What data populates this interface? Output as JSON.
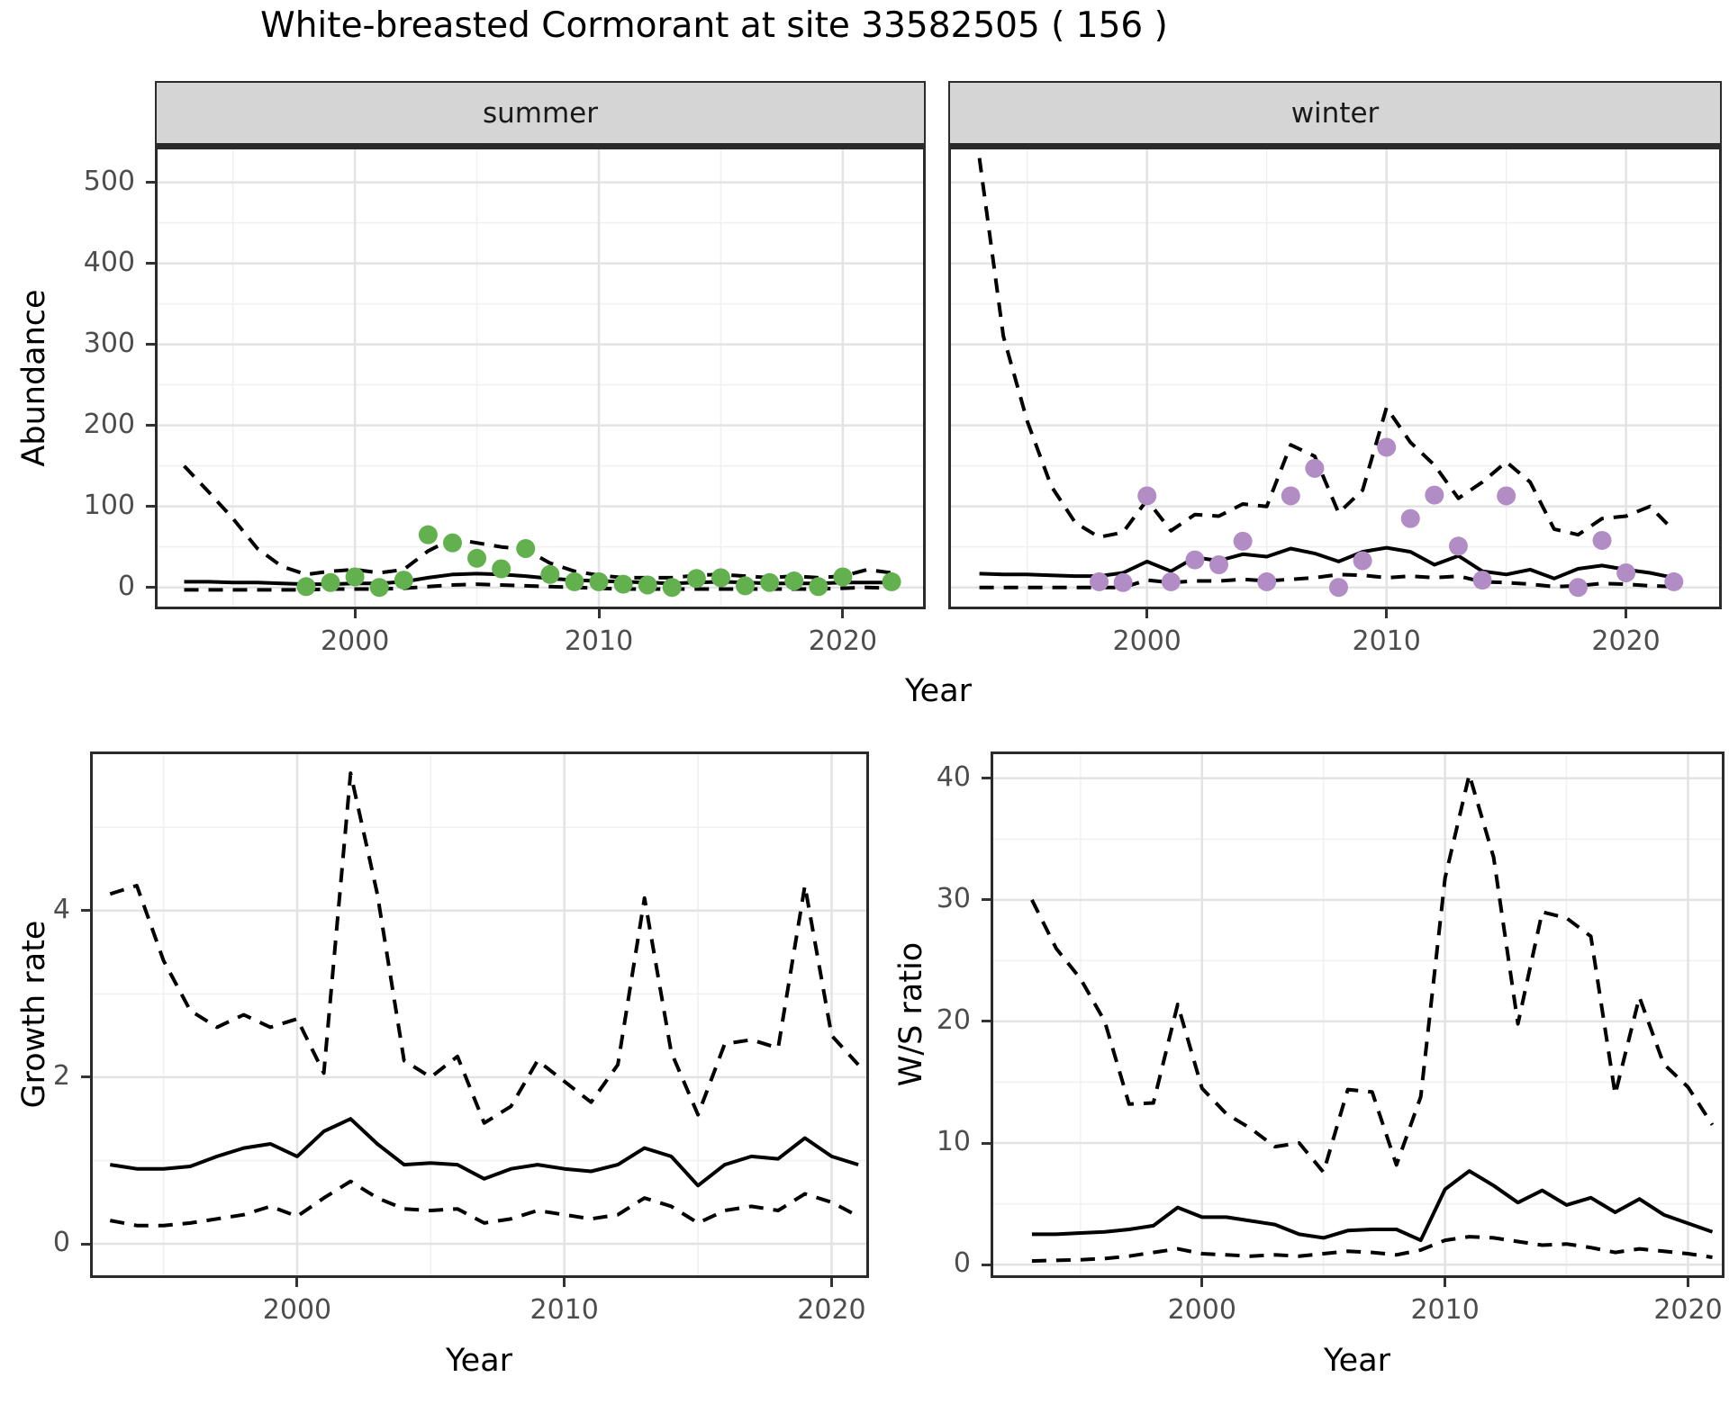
{
  "title": "White-breasted Cormorant at site 33582505 ( 156 )",
  "top_row": {
    "facets": [
      "summer",
      "winter"
    ],
    "ylabel": "Abundance",
    "xlabel": "Year"
  },
  "bottom_left": {
    "ylabel": "Growth rate",
    "xlabel": "Year"
  },
  "bottom_right": {
    "ylabel": "W/S ratio",
    "xlabel": "Year"
  },
  "colors": {
    "summer_points": "#62b14e",
    "winter_points": "#b18cc5",
    "line": "#000000",
    "strip_bg": "#d5d5d5",
    "grid_major": "#e3e3e3",
    "grid_minor": "#f0f0f0",
    "panel_border": "#2b2b2b",
    "tick_text": "#4d4d4d"
  },
  "chart_data": [
    {
      "type": "line",
      "panel": "summer",
      "title": "summer",
      "xlabel": "Year",
      "ylabel": "Abundance",
      "xlim": [
        1991.8,
        2023.4
      ],
      "ylim": [
        -27,
        544
      ],
      "x_ticks": [
        2000,
        2010,
        2020
      ],
      "x_minor": [
        1995,
        2005,
        2015
      ],
      "y_ticks": [
        0,
        100,
        200,
        300,
        400,
        500
      ],
      "y_minor": [
        50,
        150,
        250,
        350,
        450
      ],
      "legend": "none",
      "series": [
        {
          "name": "estimate",
          "style": "solid",
          "x": [
            1993,
            1994,
            1995,
            1996,
            1997,
            1998,
            1999,
            2000,
            2001,
            2002,
            2003,
            2004,
            2005,
            2006,
            2007,
            2008,
            2009,
            2010,
            2011,
            2012,
            2013,
            2014,
            2015,
            2016,
            2017,
            2018,
            2019,
            2020,
            2021,
            2022
          ],
          "y": [
            7,
            7,
            6,
            6,
            5,
            4,
            4,
            5,
            5,
            7,
            12,
            16,
            17,
            16,
            14,
            11,
            9,
            8,
            7,
            6,
            5,
            6,
            7,
            6,
            5,
            5,
            5,
            6,
            6,
            6
          ]
        },
        {
          "name": "upper_ci",
          "style": "dashed",
          "x": [
            1993,
            1994,
            1995,
            1996,
            1997,
            1998,
            1999,
            2000,
            2001,
            2002,
            2003,
            2004,
            2005,
            2006,
            2007,
            2008,
            2009,
            2010,
            2011,
            2012,
            2013,
            2014,
            2015,
            2016,
            2017,
            2018,
            2019,
            2020,
            2021,
            2022
          ],
          "y": [
            150,
            118,
            85,
            48,
            26,
            16,
            20,
            22,
            18,
            22,
            45,
            60,
            55,
            50,
            47,
            30,
            20,
            15,
            12,
            12,
            12,
            15,
            16,
            14,
            12,
            14,
            12,
            14,
            22,
            18
          ]
        },
        {
          "name": "lower_ci",
          "style": "dashed",
          "x": [
            1993,
            1994,
            1995,
            1996,
            1997,
            1998,
            1999,
            2000,
            2001,
            2002,
            2003,
            2004,
            2005,
            2006,
            2007,
            2008,
            2009,
            2010,
            2011,
            2012,
            2013,
            2014,
            2015,
            2016,
            2017,
            2018,
            2019,
            2020,
            2021,
            2022
          ],
          "y": [
            -3,
            -3,
            -3,
            -3,
            -3,
            -3,
            -2,
            -2,
            -2,
            -1,
            1,
            3,
            4,
            3,
            2,
            1,
            0,
            -1,
            -2,
            -2,
            -2,
            -2,
            -2,
            -2,
            -2,
            -2,
            -2,
            -1,
            0,
            -1
          ]
        },
        {
          "name": "observations",
          "style": "points",
          "color": "#62b14e",
          "x": [
            1998,
            1999,
            2000,
            2001,
            2002,
            2003,
            2004,
            2005,
            2006,
            2007,
            2008,
            2009,
            2010,
            2011,
            2012,
            2013,
            2014,
            2015,
            2016,
            2017,
            2018,
            2019,
            2020,
            2022
          ],
          "y": [
            1,
            6,
            13,
            0,
            9,
            65,
            55,
            36,
            23,
            48,
            16,
            7,
            7,
            4,
            3,
            0,
            11,
            12,
            2,
            6,
            8,
            1,
            13,
            7
          ]
        }
      ]
    },
    {
      "type": "line",
      "panel": "winter",
      "title": "winter",
      "xlabel": "Year",
      "ylabel": "Abundance",
      "xlim": [
        1991.7,
        2024.0
      ],
      "ylim": [
        -27,
        544
      ],
      "x_ticks": [
        2000,
        2010,
        2020
      ],
      "x_minor": [
        1995,
        2005,
        2015
      ],
      "y_ticks": [
        0,
        100,
        200,
        300,
        400,
        500
      ],
      "y_minor": [
        50,
        150,
        250,
        350,
        450
      ],
      "legend": "none",
      "series": [
        {
          "name": "estimate",
          "style": "solid",
          "x": [
            1993,
            1994,
            1995,
            1996,
            1997,
            1998,
            1999,
            2000,
            2001,
            2002,
            2003,
            2004,
            2005,
            2006,
            2007,
            2008,
            2009,
            2010,
            2011,
            2012,
            2013,
            2014,
            2015,
            2016,
            2017,
            2018,
            2019,
            2020,
            2021,
            2022
          ],
          "y": [
            17,
            16,
            16,
            15,
            14,
            14,
            18,
            32,
            20,
            37,
            33,
            41,
            38,
            48,
            42,
            32,
            44,
            49,
            44,
            28,
            39,
            20,
            16,
            22,
            11,
            23,
            27,
            22,
            18,
            12
          ]
        },
        {
          "name": "upper_ci",
          "style": "dashed",
          "x": [
            1993,
            1994,
            1995,
            1996,
            1997,
            1998,
            1999,
            2000,
            2001,
            2002,
            2003,
            2004,
            2005,
            2006,
            2007,
            2008,
            2009,
            2010,
            2011,
            2012,
            2013,
            2014,
            2015,
            2016,
            2017,
            2018,
            2019,
            2020,
            2021,
            2022
          ],
          "y": [
            530,
            310,
            205,
            125,
            80,
            62,
            68,
            108,
            70,
            90,
            88,
            103,
            100,
            176,
            162,
            92,
            120,
            222,
            179,
            151,
            110,
            130,
            155,
            130,
            72,
            65,
            85,
            88,
            100,
            70
          ]
        },
        {
          "name": "lower_ci",
          "style": "dashed",
          "x": [
            1993,
            1994,
            1995,
            1996,
            1997,
            1998,
            1999,
            2000,
            2001,
            2002,
            2003,
            2004,
            2005,
            2006,
            2007,
            2008,
            2009,
            2010,
            2011,
            2012,
            2013,
            2014,
            2015,
            2016,
            2017,
            2018,
            2019,
            2020,
            2021,
            2022
          ],
          "y": [
            0,
            0,
            0,
            0,
            0,
            0,
            0,
            9,
            6,
            8,
            8,
            10,
            8,
            10,
            12,
            16,
            15,
            12,
            14,
            12,
            14,
            7,
            6,
            4,
            1,
            2,
            5,
            4,
            2,
            1
          ]
        },
        {
          "name": "observations",
          "style": "points",
          "color": "#b18cc5",
          "x": [
            1998,
            1999,
            2000,
            2001,
            2002,
            2003,
            2004,
            2005,
            2006,
            2007,
            2008,
            2009,
            2010,
            2011,
            2012,
            2013,
            2014,
            2015,
            2018,
            2019,
            2020,
            2022
          ],
          "y": [
            7,
            6,
            113,
            7,
            34,
            28,
            57,
            7,
            113,
            147,
            0,
            33,
            173,
            85,
            114,
            51,
            9,
            113,
            0,
            58,
            18,
            7
          ]
        }
      ]
    },
    {
      "type": "line",
      "panel": "growth",
      "title": "Growth rate",
      "xlabel": "Year",
      "ylabel": "Growth rate",
      "xlim": [
        1992.25,
        2021.4
      ],
      "ylim": [
        -0.41,
        5.91
      ],
      "x_ticks": [
        2000,
        2010,
        2020
      ],
      "x_minor": [
        1995,
        2005,
        2015
      ],
      "y_ticks": [
        0,
        2,
        4
      ],
      "y_minor": [
        1,
        3,
        5
      ],
      "legend": "none",
      "series": [
        {
          "name": "estimate",
          "style": "solid",
          "x": [
            1993,
            1994,
            1995,
            1996,
            1997,
            1998,
            1999,
            2000,
            2001,
            2002,
            2003,
            2004,
            2005,
            2006,
            2007,
            2008,
            2009,
            2010,
            2011,
            2012,
            2013,
            2014,
            2015,
            2016,
            2017,
            2018,
            2019,
            2020,
            2021
          ],
          "y": [
            0.95,
            0.9,
            0.9,
            0.93,
            1.05,
            1.15,
            1.2,
            1.05,
            1.35,
            1.5,
            1.2,
            0.95,
            0.97,
            0.95,
            0.78,
            0.9,
            0.95,
            0.9,
            0.87,
            0.95,
            1.15,
            1.05,
            0.7,
            0.95,
            1.05,
            1.02,
            1.27,
            1.05,
            0.95
          ]
        },
        {
          "name": "upper_ci",
          "style": "dashed",
          "x": [
            1993,
            1994,
            1995,
            1996,
            1997,
            1998,
            1999,
            2000,
            2001,
            2002,
            2003,
            2004,
            2005,
            2006,
            2007,
            2008,
            2009,
            2010,
            2011,
            2012,
            2013,
            2014,
            2015,
            2016,
            2017,
            2018,
            2019,
            2020,
            2021
          ],
          "y": [
            4.2,
            4.3,
            3.4,
            2.8,
            2.6,
            2.75,
            2.6,
            2.7,
            2.05,
            5.65,
            4.2,
            2.2,
            2.0,
            2.25,
            1.45,
            1.65,
            2.2,
            1.95,
            1.7,
            2.15,
            4.15,
            2.3,
            1.55,
            2.4,
            2.45,
            2.35,
            4.3,
            2.5,
            2.15
          ]
        },
        {
          "name": "lower_ci",
          "style": "dashed",
          "x": [
            1993,
            1994,
            1995,
            1996,
            1997,
            1998,
            1999,
            2000,
            2001,
            2002,
            2003,
            2004,
            2005,
            2006,
            2007,
            2008,
            2009,
            2010,
            2011,
            2012,
            2013,
            2014,
            2015,
            2016,
            2017,
            2018,
            2019,
            2020,
            2021
          ],
          "y": [
            0.28,
            0.22,
            0.22,
            0.25,
            0.3,
            0.35,
            0.45,
            0.33,
            0.55,
            0.75,
            0.55,
            0.42,
            0.4,
            0.42,
            0.25,
            0.3,
            0.4,
            0.35,
            0.3,
            0.35,
            0.55,
            0.45,
            0.25,
            0.4,
            0.45,
            0.4,
            0.6,
            0.5,
            0.33
          ]
        }
      ]
    },
    {
      "type": "line",
      "panel": "ws",
      "title": "W/S ratio",
      "xlabel": "Year",
      "ylabel": "W/S ratio",
      "xlim": [
        1991.3,
        2021.5
      ],
      "ylim": [
        -1.1,
        42.2
      ],
      "x_ticks": [
        2000,
        2010,
        2020
      ],
      "x_minor": [
        1995,
        2005,
        2015
      ],
      "y_ticks": [
        0,
        10,
        20,
        30,
        40
      ],
      "y_minor": [
        5,
        15,
        25,
        35
      ],
      "legend": "none",
      "series": [
        {
          "name": "estimate",
          "style": "solid",
          "x": [
            1993,
            1994,
            1995,
            1996,
            1997,
            1998,
            1999,
            2000,
            2001,
            2002,
            2003,
            2004,
            2005,
            2006,
            2007,
            2008,
            2009,
            2010,
            2011,
            2012,
            2013,
            2014,
            2015,
            2016,
            2017,
            2018,
            2019,
            2020,
            2021
          ],
          "y": [
            2.5,
            2.5,
            2.6,
            2.7,
            2.9,
            3.2,
            4.7,
            3.9,
            3.9,
            3.6,
            3.3,
            2.5,
            2.2,
            2.8,
            2.9,
            2.9,
            2.0,
            6.2,
            7.7,
            6.5,
            5.1,
            6.1,
            4.9,
            5.5,
            4.3,
            5.4,
            4.1,
            3.4,
            2.7
          ]
        },
        {
          "name": "upper_ci",
          "style": "dashed",
          "x": [
            1993,
            1994,
            1995,
            1996,
            1997,
            1998,
            1999,
            2000,
            2001,
            2002,
            2003,
            2004,
            2005,
            2006,
            2007,
            2008,
            2009,
            2010,
            2011,
            2012,
            2013,
            2014,
            2015,
            2016,
            2017,
            2018,
            2019,
            2020,
            2021
          ],
          "y": [
            30,
            26,
            23.5,
            20,
            13.2,
            13.3,
            21.4,
            14.5,
            12.4,
            11.2,
            9.7,
            10,
            7.6,
            14.4,
            14.2,
            8.2,
            13.8,
            31.8,
            40.3,
            33.5,
            19.8,
            29,
            28.5,
            27,
            14,
            22,
            16.5,
            14.6,
            11.5
          ]
        },
        {
          "name": "lower_ci",
          "style": "dashed",
          "x": [
            1993,
            1994,
            1995,
            1996,
            1997,
            1998,
            1999,
            2000,
            2001,
            2002,
            2003,
            2004,
            2005,
            2006,
            2007,
            2008,
            2009,
            2010,
            2011,
            2012,
            2013,
            2014,
            2015,
            2016,
            2017,
            2018,
            2019,
            2020,
            2021
          ],
          "y": [
            0.3,
            0.35,
            0.4,
            0.5,
            0.7,
            1.0,
            1.3,
            0.9,
            0.8,
            0.7,
            0.8,
            0.7,
            0.9,
            1.1,
            1.0,
            0.8,
            1.2,
            2.0,
            2.3,
            2.2,
            1.9,
            1.6,
            1.7,
            1.4,
            1.0,
            1.3,
            1.1,
            0.9,
            0.6
          ]
        }
      ]
    }
  ]
}
